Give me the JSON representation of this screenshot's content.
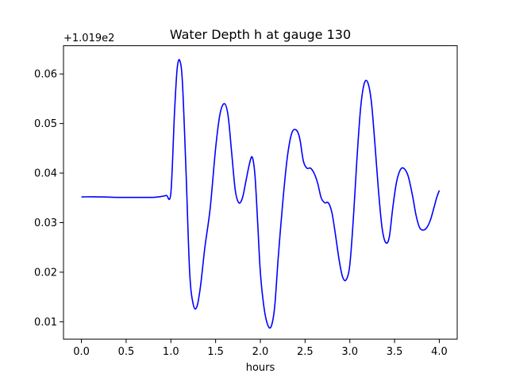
{
  "chart_data": {
    "type": "line",
    "title": "Water Depth h at gauge 130",
    "xlabel": "hours",
    "ylabel": "",
    "y_offset_label": "+1.019e2",
    "xlim": [
      -0.2,
      4.2
    ],
    "ylim": [
      0.0065,
      0.0657
    ],
    "x_ticks": [
      0.0,
      0.5,
      1.0,
      1.5,
      2.0,
      2.5,
      3.0,
      3.5,
      4.0
    ],
    "x_tick_labels": [
      "0.0",
      "0.5",
      "1.0",
      "1.5",
      "2.0",
      "2.5",
      "3.0",
      "3.5",
      "4.0"
    ],
    "y_ticks": [
      0.01,
      0.02,
      0.03,
      0.04,
      0.05,
      0.06
    ],
    "y_tick_labels": [
      "0.01",
      "0.02",
      "0.03",
      "0.04",
      "0.05",
      "0.06"
    ],
    "grid": false,
    "series_color": "#0000ff",
    "series": [
      {
        "x": [
          0.0,
          0.2,
          0.4,
          0.6,
          0.8,
          0.9,
          0.95,
          1.0,
          1.04,
          1.07,
          1.1,
          1.13,
          1.17,
          1.21,
          1.25,
          1.29,
          1.33,
          1.38,
          1.44,
          1.5,
          1.55,
          1.6,
          1.64,
          1.68,
          1.72,
          1.76,
          1.8,
          1.84,
          1.88,
          1.91,
          1.94,
          1.97,
          2.0,
          2.04,
          2.08,
          2.12,
          2.16,
          2.2,
          2.25,
          2.3,
          2.35,
          2.4,
          2.44,
          2.48,
          2.52,
          2.56,
          2.6,
          2.64,
          2.68,
          2.72,
          2.76,
          2.8,
          2.84,
          2.88,
          2.92,
          2.96,
          3.0,
          3.04,
          3.08,
          3.12,
          3.16,
          3.2,
          3.24,
          3.28,
          3.32,
          3.36,
          3.4,
          3.44,
          3.48,
          3.52,
          3.56,
          3.6,
          3.65,
          3.7,
          3.74,
          3.78,
          3.82,
          3.86,
          3.9,
          3.94,
          3.97,
          4.0
        ],
        "y": [
          0.0352,
          0.0352,
          0.0351,
          0.0351,
          0.0351,
          0.0353,
          0.0355,
          0.036,
          0.052,
          0.061,
          0.0627,
          0.058,
          0.04,
          0.02,
          0.0135,
          0.013,
          0.017,
          0.025,
          0.033,
          0.045,
          0.052,
          0.054,
          0.0515,
          0.044,
          0.0365,
          0.034,
          0.035,
          0.0385,
          0.042,
          0.0432,
          0.0395,
          0.03,
          0.02,
          0.013,
          0.0095,
          0.009,
          0.013,
          0.023,
          0.034,
          0.043,
          0.048,
          0.0487,
          0.047,
          0.0425,
          0.041,
          0.041,
          0.04,
          0.038,
          0.035,
          0.034,
          0.034,
          0.032,
          0.0275,
          0.0225,
          0.019,
          0.0185,
          0.0215,
          0.031,
          0.043,
          0.053,
          0.058,
          0.0583,
          0.0545,
          0.046,
          0.0365,
          0.029,
          0.026,
          0.027,
          0.033,
          0.038,
          0.0405,
          0.041,
          0.0395,
          0.0355,
          0.0315,
          0.029,
          0.0285,
          0.029,
          0.0305,
          0.033,
          0.035,
          0.0365
        ]
      }
    ]
  }
}
